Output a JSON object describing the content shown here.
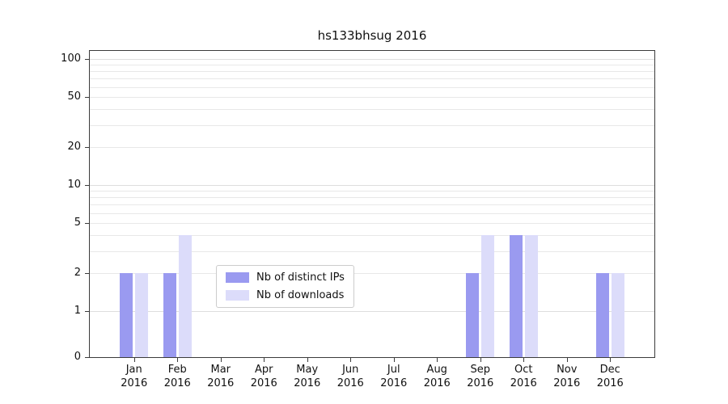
{
  "chart_data": {
    "type": "bar",
    "title": "hs133bhsug 2016",
    "categories": [
      "Jan",
      "Feb",
      "Mar",
      "Apr",
      "May",
      "Jun",
      "Jul",
      "Aug",
      "Sep",
      "Oct",
      "Nov",
      "Dec"
    ],
    "category_subline": "2016",
    "series": [
      {
        "name": "Nb of distinct IPs",
        "color": "#9a9af0",
        "values": [
          2,
          2,
          0,
          0,
          0,
          0,
          0,
          0,
          2,
          4,
          0,
          2
        ]
      },
      {
        "name": "Nb of downloads",
        "color": "#dcdcfa",
        "values": [
          2,
          4,
          0,
          0,
          0,
          0,
          0,
          0,
          4,
          4,
          0,
          2
        ]
      }
    ],
    "yscale": "symlog",
    "yticks": [
      0,
      1,
      2,
      5,
      10,
      20,
      50,
      100
    ],
    "ylim": [
      0,
      120
    ],
    "grid": "horizontal",
    "legend_position": "lower-center-inside"
  }
}
